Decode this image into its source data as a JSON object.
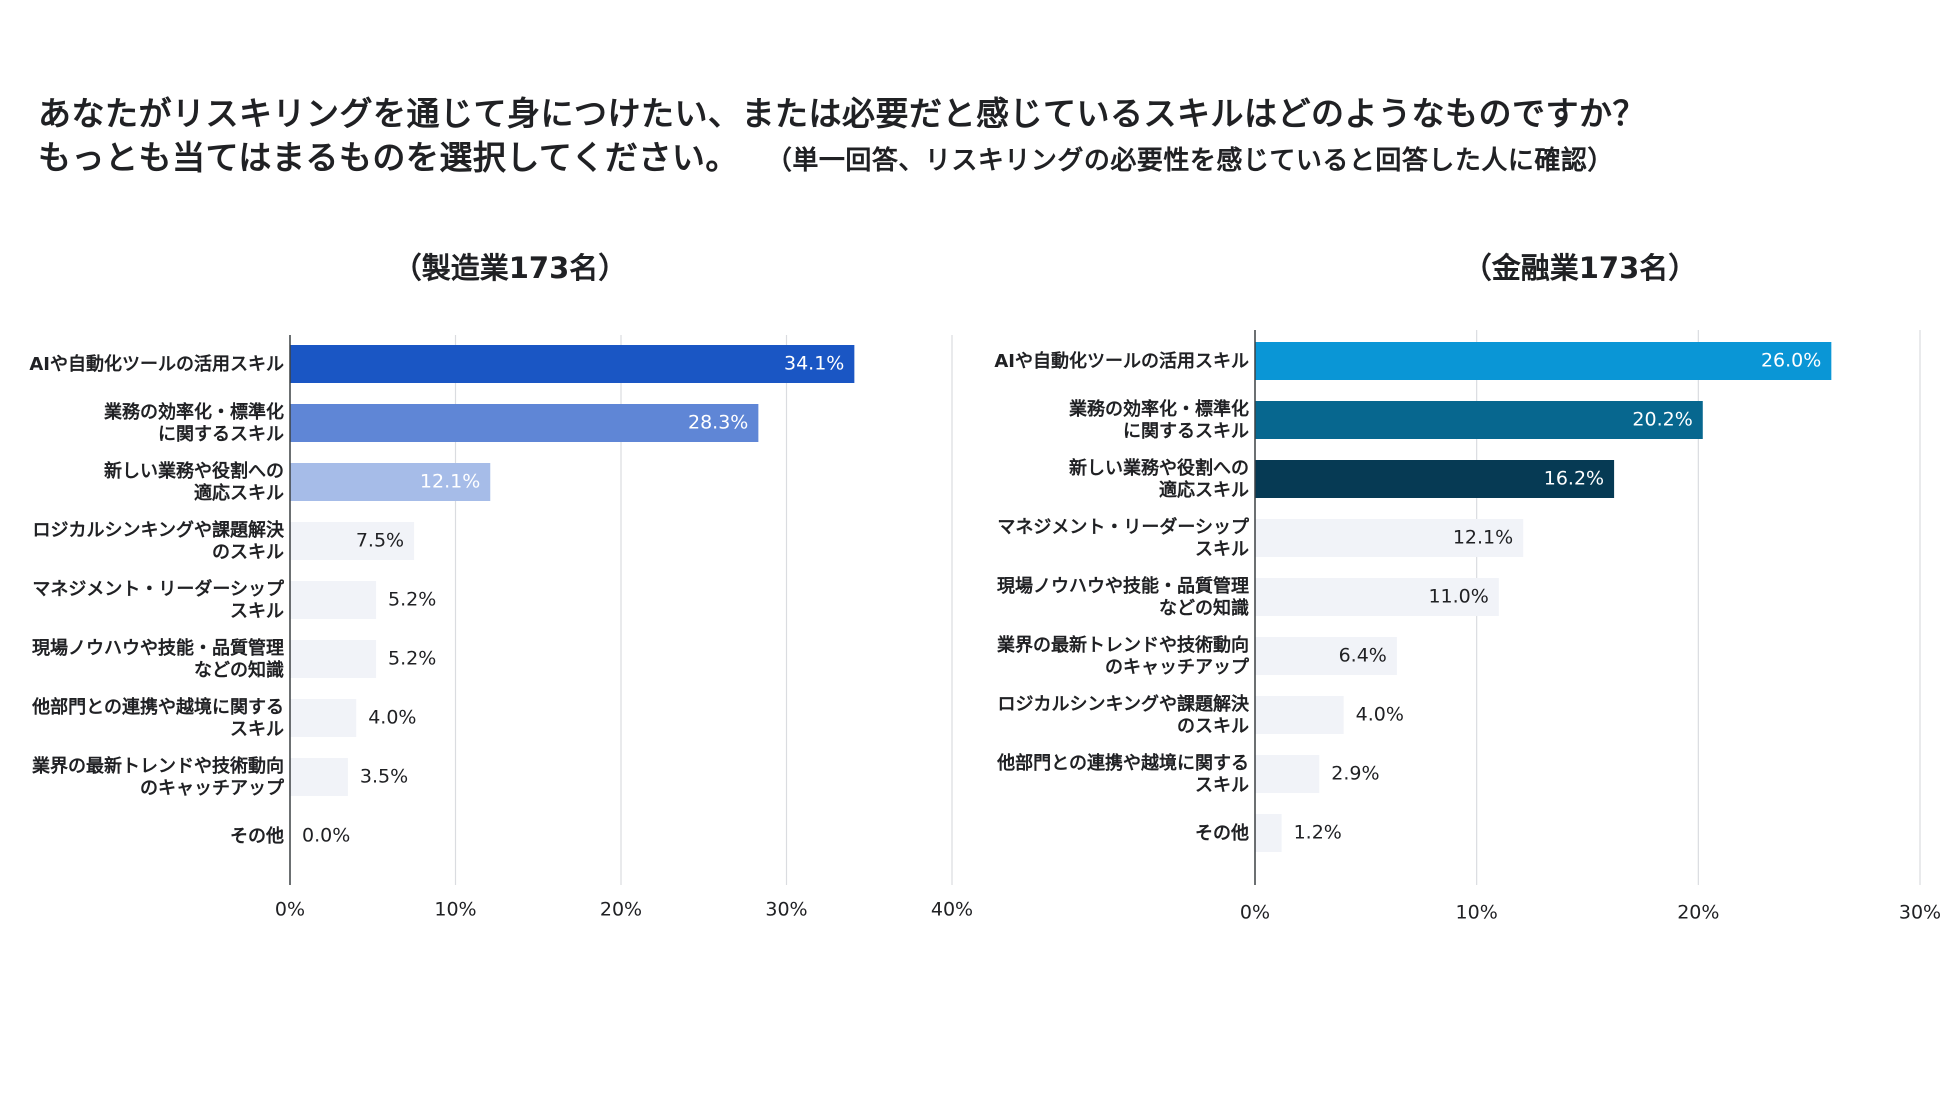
{
  "title": {
    "line1": "あなたがリスキリングを通じて身につけたい、または必要だと感じているスキルはどのようなものですか？",
    "line2": "もっとも当てはまるものを選択してください。",
    "note": "（単一回答、リスキリングの必要性を感じていると回答した人に確認）"
  },
  "chart_data": [
    {
      "type": "bar",
      "orientation": "horizontal",
      "title": "（製造業173名）",
      "categories": [
        "AIや自動化ツールの活用スキル",
        "業務の効率化・標準化\nに関するスキル",
        "新しい業務や役割への\n適応スキル",
        "ロジカルシンキングや課題解決\nのスキル",
        "マネジメント・リーダーシップ\nスキル",
        "現場ノウハウや技能・品質管理\nなどの知識",
        "他部門との連携や越境に関する\nスキル",
        "業界の最新トレンドや技術動向\nのキャッチアップ",
        "その他"
      ],
      "values": [
        34.1,
        28.3,
        12.1,
        7.5,
        5.2,
        5.2,
        4.0,
        3.5,
        0.0
      ],
      "value_labels": [
        "34.1%",
        "28.3%",
        "12.1%",
        "7.5%",
        "5.2%",
        "5.2%",
        "4.0%",
        "3.5%",
        "0.0%"
      ],
      "xlim": [
        0,
        40
      ],
      "xticks": [
        "0%",
        "10%",
        "20%",
        "30%",
        "40%"
      ],
      "colors": [
        "#1a56c4",
        "#5f86d6",
        "#a6bce8",
        "#f1f3f8",
        "#f1f3f8",
        "#f1f3f8",
        "#f1f3f8",
        "#f1f3f8",
        "#f1f3f8"
      ],
      "grid": true
    },
    {
      "type": "bar",
      "orientation": "horizontal",
      "title": "（金融業173名）",
      "categories": [
        "AIや自動化ツールの活用スキル",
        "業務の効率化・標準化\nに関するスキル",
        "新しい業務や役割への\n適応スキル",
        "マネジメント・リーダーシップ\nスキル",
        "現場ノウハウや技能・品質管理\nなどの知識",
        "業界の最新トレンドや技術動向\nのキャッチアップ",
        "ロジカルシンキングや課題解決\nのスキル",
        "他部門との連携や越境に関する\nスキル",
        "その他"
      ],
      "values": [
        26.0,
        20.2,
        16.2,
        12.1,
        11.0,
        6.4,
        4.0,
        2.9,
        1.2
      ],
      "value_labels": [
        "26.0%",
        "20.2%",
        "16.2%",
        "12.1%",
        "11.0%",
        "6.4%",
        "4.0%",
        "2.9%",
        "1.2%"
      ],
      "xlim": [
        0,
        30
      ],
      "xticks": [
        "0%",
        "10%",
        "20%",
        "30%"
      ],
      "colors": [
        "#0a96d6",
        "#07678f",
        "#063a54",
        "#f1f3f8",
        "#f1f3f8",
        "#f1f3f8",
        "#f1f3f8",
        "#f1f3f8",
        "#f1f3f8"
      ],
      "grid": true
    }
  ]
}
